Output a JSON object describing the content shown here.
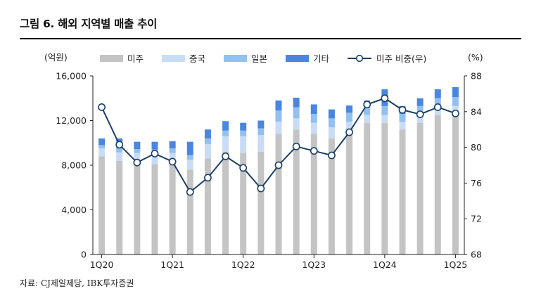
{
  "figure": {
    "title": "그림 6. 해외 지역별 매출 추이",
    "source": "자료: CJ제일제당, IBK투자증권"
  },
  "chart_data": {
    "type": "bar",
    "stacked": true,
    "combo_line": true,
    "title": "그림 6. 해외 지역별 매출 추이",
    "y_left_unit": "(억원)",
    "y_right_unit": "(%)",
    "ylim_left": [
      0,
      16000
    ],
    "ylim_right": [
      68,
      88
    ],
    "y_left_ticks": [
      0,
      4000,
      8000,
      12000,
      16000
    ],
    "y_left_tick_labels": [
      "0",
      "4,000",
      "8,000",
      "12,000",
      "16,000"
    ],
    "y_right_ticks": [
      68,
      72,
      76,
      80,
      84,
      88
    ],
    "y_right_tick_labels": [
      "68",
      "72",
      "76",
      "80",
      "84",
      "88"
    ],
    "x_tick_labels": [
      "1Q20",
      "1Q21",
      "1Q22",
      "1Q23",
      "1Q24",
      "1Q25"
    ],
    "x_tick_positions": [
      0,
      4,
      8,
      12,
      16,
      20
    ],
    "categories": [
      "1Q20",
      "2Q20",
      "3Q20",
      "4Q20",
      "1Q21",
      "2Q21",
      "3Q21",
      "4Q21",
      "1Q22",
      "2Q22",
      "3Q22",
      "4Q22",
      "1Q23",
      "2Q23",
      "3Q23",
      "4Q23",
      "1Q24",
      "2Q24",
      "3Q24",
      "4Q24",
      "1Q25"
    ],
    "legend_position": "top",
    "series": [
      {
        "name": "미주",
        "color": "#c4c4c4",
        "values": [
          8800,
          8400,
          8300,
          8100,
          8200,
          7600,
          8600,
          9200,
          9100,
          9200,
          10800,
          11200,
          10800,
          10400,
          11000,
          11800,
          11800,
          11200,
          11800,
          12500,
          12600
        ]
      },
      {
        "name": "중국",
        "color": "#c9dcf5",
        "values": [
          700,
          750,
          800,
          900,
          900,
          900,
          1300,
          1400,
          1500,
          1500,
          1100,
          1000,
          1000,
          1000,
          900,
          700,
          700,
          700,
          700,
          700,
          700
        ]
      },
      {
        "name": "일본",
        "color": "#93c0ee",
        "values": [
          300,
          350,
          350,
          400,
          400,
          400,
          500,
          500,
          500,
          600,
          1000,
          1000,
          800,
          800,
          800,
          800,
          800,
          700,
          800,
          800,
          800
        ]
      },
      {
        "name": "기타",
        "color": "#4a86e0",
        "values": [
          600,
          900,
          650,
          700,
          650,
          1200,
          800,
          850,
          700,
          700,
          900,
          850,
          850,
          800,
          650,
          500,
          1500,
          700,
          700,
          800,
          900
        ]
      }
    ],
    "line_series": {
      "name": "미주 비중(우)",
      "color": "#1b3f66",
      "axis": "right",
      "values": [
        84.5,
        80.3,
        78.3,
        79.3,
        78.4,
        75.0,
        76.6,
        79.0,
        77.7,
        75.4,
        78.0,
        80.1,
        79.6,
        79.1,
        81.7,
        84.8,
        85.5,
        84.2,
        83.7,
        84.5,
        83.8
      ]
    }
  }
}
